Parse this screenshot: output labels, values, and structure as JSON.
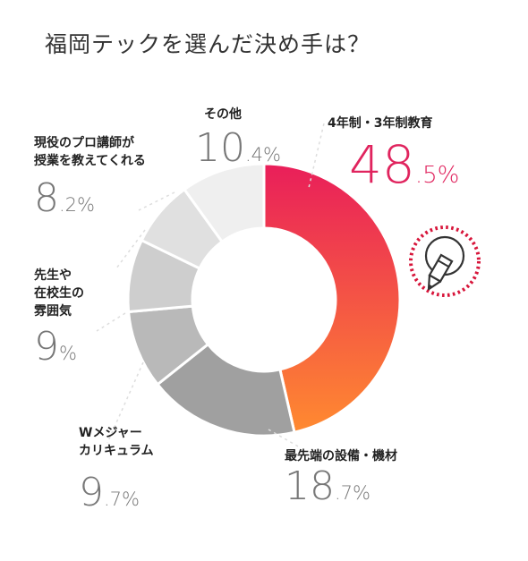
{
  "title": "福岡テックを選んだ決め手は？",
  "colors": {
    "accent": "#e0245e",
    "grad_top": "#e91e5a",
    "grad_bottom": "#ff8a30",
    "leader": "#dddddd",
    "icon_ring": "#d7153a",
    "icon_stroke": "#333333"
  },
  "chart_data": {
    "type": "pie",
    "donut": true,
    "slices": [
      {
        "label": "4年制・3年制教育",
        "lines": [
          "4年制・3年制教育"
        ],
        "value": 48.5,
        "int": "48",
        "dec": ".5%",
        "color": "gradient"
      },
      {
        "label": "最先端の設備・機材",
        "lines": [
          "最先端の設備・機材"
        ],
        "value": 18.7,
        "int": "18",
        "dec": ".7%",
        "color": "#a0a0a0"
      },
      {
        "label": "Wメジャーカリキュラム",
        "lines": [
          "Wメジャー",
          "カリキュラム"
        ],
        "value": 9.7,
        "int": "9",
        "dec": ".7%",
        "color": "#b9b9b9"
      },
      {
        "label": "先生や在校生の雰囲気",
        "lines": [
          "先生や",
          "在校生の",
          "雰囲気"
        ],
        "value": 9,
        "int": "9",
        "dec": "%",
        "color": "#cecece"
      },
      {
        "label": "現役のプロ講師が授業を教えてくれる",
        "lines": [
          "現役のプロ講師が",
          "授業を教えてくれる"
        ],
        "value": 8.2,
        "int": "8",
        "dec": ".2%",
        "color": "#e0e0e0"
      },
      {
        "label": "その他",
        "lines": [
          "その他"
        ],
        "value": 10.4,
        "int": "10",
        "dec": ".4%",
        "color": "#efefef"
      }
    ]
  }
}
